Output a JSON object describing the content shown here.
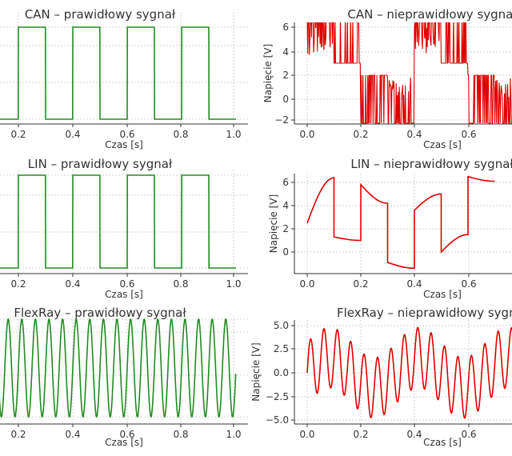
{
  "chart_data": [
    {
      "type": "line",
      "title": "CAN – prawidłowy sygnał",
      "xlabel": "Czas [s]",
      "ylabel": "",
      "xlim": [
        0,
        1.0
      ],
      "ylim": [
        -0.1,
        1.1
      ],
      "xticks": [
        "0.2",
        "0.4",
        "0.6",
        "0.8",
        "1.0"
      ],
      "yticks": [],
      "grid": true,
      "color": "#228B22",
      "series": [
        {
          "signal": "square",
          "period": 0.2,
          "high": 1,
          "low": 0
        }
      ]
    },
    {
      "type": "line",
      "title": "CAN – nieprawidłowy sygnał",
      "xlabel": "Czas [s]",
      "ylabel": "Napięcie [V]",
      "xlim": [
        -0.05,
        1.0
      ],
      "ylim": [
        -2.3,
        7.3
      ],
      "xticks": [
        "0.0",
        "0.2",
        "0.4",
        "0.6"
      ],
      "yticks": [
        "−2",
        "0",
        "2",
        "4",
        "6"
      ],
      "grid": true,
      "color": "#e00000",
      "series": [
        {
          "signal": "noisy square",
          "period": 0.4,
          "levels": [
            7,
            3,
            2,
            -2
          ],
          "noise": "high-frequency"
        }
      ]
    },
    {
      "type": "line",
      "title": "LIN – prawidłowy sygnał",
      "xlabel": "Czas [s]",
      "ylabel": "",
      "xlim": [
        0,
        1.0
      ],
      "ylim": [
        -0.1,
        1.1
      ],
      "xticks": [
        "0.2",
        "0.4",
        "0.6",
        "0.8",
        "1.0"
      ],
      "yticks": [],
      "grid": true,
      "color": "#228B22",
      "series": [
        {
          "signal": "square",
          "period": 0.2,
          "high": 1,
          "low": 0
        }
      ]
    },
    {
      "type": "line",
      "title": "LIN – nieprawidłowy sygnał",
      "xlabel": "Czas [s]",
      "ylabel": "Napięcie [V]",
      "xlim": [
        -0.05,
        1.0
      ],
      "ylim": [
        -1.7,
        6.9
      ],
      "xticks": [
        "0.0",
        "0.2",
        "0.4",
        "0.6"
      ],
      "yticks": [
        "0",
        "2",
        "4",
        "6"
      ],
      "grid": true,
      "color": "#e00000",
      "series": [
        {
          "x": [
            0,
            0.1,
            0.1,
            0.2,
            0.2,
            0.3,
            0.3,
            0.4,
            0.4,
            0.5,
            0.5,
            0.6,
            0.6,
            0.7
          ],
          "y": [
            2.5,
            6.4,
            1.3,
            1.0,
            5.8,
            4.2,
            -0.9,
            -1.4,
            3.6,
            5.0,
            0.0,
            1.5,
            6.5,
            6.1
          ]
        }
      ]
    },
    {
      "type": "line",
      "title": "FlexRay – prawidłowy sygnał",
      "xlabel": "Czas [s]",
      "ylabel": "",
      "xlim": [
        0,
        1.0
      ],
      "ylim": [
        -1.1,
        1.1
      ],
      "xticks": [
        "0.2",
        "0.4",
        "0.6",
        "0.8",
        "1.0"
      ],
      "yticks": [],
      "grid": true,
      "color": "#228B22",
      "series": [
        {
          "signal": "sine",
          "frequency_hz": 20,
          "amplitude": 1
        }
      ]
    },
    {
      "type": "line",
      "title": "FlexRay – nieprawidłowy sygnał",
      "xlabel": "Czas [s]",
      "ylabel": "Napięcie [V]",
      "xlim": [
        -0.05,
        1.0
      ],
      "ylim": [
        -5.2,
        5.2
      ],
      "xticks": [
        "0.0",
        "0.2",
        "0.4",
        "0.6"
      ],
      "yticks": [
        "−5.0",
        "−2.5",
        "0.0",
        "2.5",
        "5.0"
      ],
      "grid": true,
      "color": "#e00000",
      "series": [
        {
          "signal": "sum of sines",
          "components": [
            {
              "frequency_hz": 20,
              "amplitude": 3.2
            },
            {
              "frequency_hz": 3,
              "amplitude": 1.6
            }
          ]
        }
      ]
    }
  ]
}
